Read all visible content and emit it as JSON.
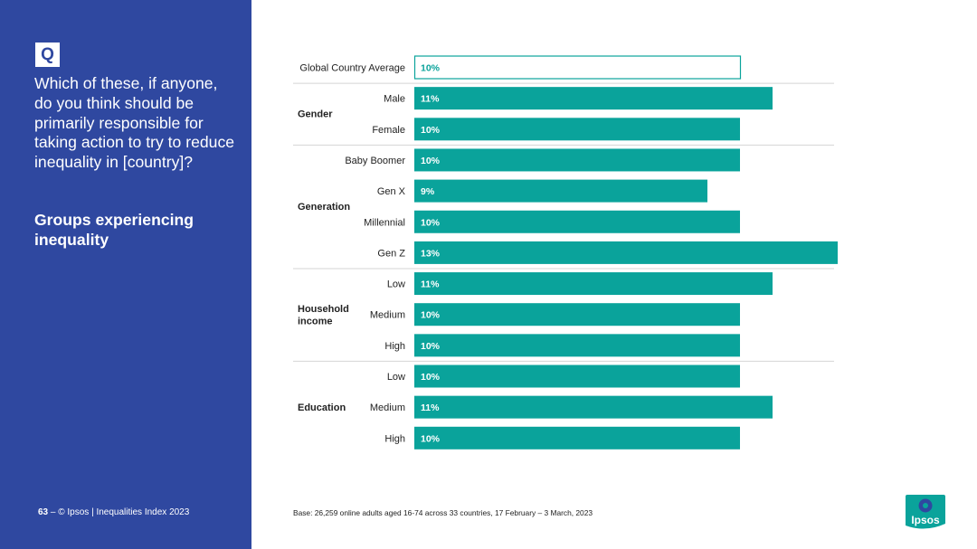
{
  "sidebar": {
    "q_label": "Q",
    "question": "Which of these, if anyone, do you think should be primarily responsible for taking action to try to reduce inequality in [country]?",
    "subtitle": "Groups experiencing inequality",
    "page_number": "63",
    "page_sep": " – ",
    "copyright": "© Ipsos | Inequalities Index 2023"
  },
  "base_note": "Base: 26,259 online adults aged 16-74 across 33 countries, 17 February – 3 March, 2023",
  "logo": {
    "text": "Ipsos",
    "color": "#0aa39b"
  },
  "colors": {
    "sidebar": "#2f48a0",
    "bar": "#0aa39b",
    "text": "#222222"
  },
  "chart_data": {
    "type": "bar",
    "orientation": "horizontal",
    "xlim": [
      0,
      13
    ],
    "rows": [
      {
        "group": "",
        "label": "Global Country Average",
        "value": 10,
        "value_label": "10%",
        "style": "outline"
      },
      {
        "group": "Gender",
        "label": "Male",
        "value": 11,
        "value_label": "11%"
      },
      {
        "group": "Gender",
        "label": "Female",
        "value": 10,
        "value_label": "10%"
      },
      {
        "group": "Generation",
        "label": "Baby Boomer",
        "value": 10,
        "value_label": "10%"
      },
      {
        "group": "Generation",
        "label": "Gen X",
        "value": 9,
        "value_label": "9%"
      },
      {
        "group": "Generation",
        "label": "Millennial",
        "value": 10,
        "value_label": "10%"
      },
      {
        "group": "Generation",
        "label": "Gen Z",
        "value": 13,
        "value_label": "13%"
      },
      {
        "group": "Household income",
        "label": "Low",
        "value": 11,
        "value_label": "11%"
      },
      {
        "group": "Household income",
        "label": "Medium",
        "value": 10,
        "value_label": "10%"
      },
      {
        "group": "Household income",
        "label": "High",
        "value": 10,
        "value_label": "10%"
      },
      {
        "group": "Education",
        "label": "Low",
        "value": 10,
        "value_label": "10%"
      },
      {
        "group": "Education",
        "label": "Medium",
        "value": 11,
        "value_label": "11%"
      },
      {
        "group": "Education",
        "label": "High",
        "value": 10,
        "value_label": "10%"
      }
    ],
    "groups": [
      {
        "name": "Gender",
        "lines": [
          "Gender"
        ]
      },
      {
        "name": "Generation",
        "lines": [
          "Generation"
        ]
      },
      {
        "name": "Household income",
        "lines": [
          "Household",
          "income"
        ]
      },
      {
        "name": "Education",
        "lines": [
          "Education"
        ]
      }
    ]
  }
}
